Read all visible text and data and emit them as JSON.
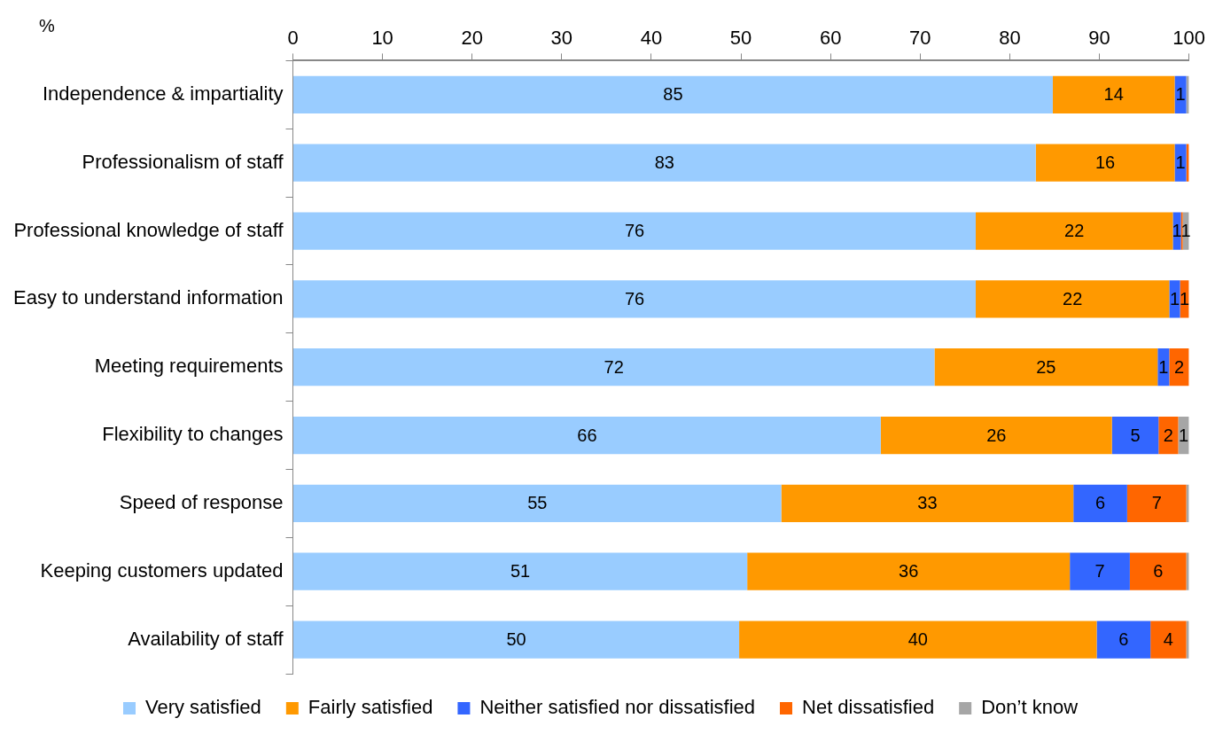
{
  "chart_data": {
    "type": "bar",
    "orientation": "horizontal",
    "stacked": true,
    "xlabel": "%",
    "categories": [
      "Independence & impartiality",
      "Professionalism of staff",
      "Professional knowledge of staff",
      "Easy to understand information",
      "Meeting requirements",
      "Flexibility to changes",
      "Speed of response",
      "Keeping customers updated",
      "Availability of staff"
    ],
    "series": [
      {
        "name": "Very satisfied",
        "color": "#99ccff",
        "values": [
          84.8,
          82.9,
          76.2,
          76.2,
          71.6,
          65.6,
          54.5,
          50.7,
          49.8
        ],
        "value_labels": [
          "85",
          "83",
          "76",
          "76",
          "72",
          "66",
          "55",
          "51",
          "50"
        ]
      },
      {
        "name": "Fairly satisfied",
        "color": "#ff9900",
        "values": [
          13.6,
          15.5,
          22.0,
          21.6,
          24.9,
          25.8,
          32.6,
          36.0,
          39.9
        ],
        "value_labels": [
          "14",
          "16",
          "22",
          "22",
          "25",
          "26",
          "33",
          "36",
          "40"
        ]
      },
      {
        "name": "Neither satisfied nor dissatisfied",
        "color": "#3366ff",
        "values": [
          1.3,
          1.3,
          0.9,
          1.2,
          1.3,
          5.2,
          6.0,
          6.7,
          6.0
        ],
        "value_labels": [
          "1",
          "1",
          "1",
          "1",
          "1",
          "5",
          "6",
          "7",
          "6"
        ]
      },
      {
        "name": "Net dissatisfied",
        "color": "#ff6600",
        "values": [
          0,
          0.3,
          0.2,
          1.0,
          2.2,
          2.2,
          6.6,
          6.3,
          4.0
        ],
        "value_labels": [
          null,
          null,
          null,
          "1",
          "2",
          "2",
          "7",
          "6",
          "4"
        ]
      },
      {
        "name": "Don’t know",
        "color": "#a6a6a6",
        "values": [
          0.3,
          0,
          0.7,
          0,
          0,
          1.2,
          0.3,
          0.3,
          0.3
        ],
        "value_labels": [
          null,
          null,
          "1",
          null,
          null,
          "1",
          null,
          null,
          null
        ]
      }
    ],
    "xlim": [
      0,
      100
    ],
    "xticks": [
      0,
      10,
      20,
      30,
      40,
      50,
      60,
      70,
      80,
      90,
      100
    ],
    "grid": false,
    "legend": "bottom"
  }
}
